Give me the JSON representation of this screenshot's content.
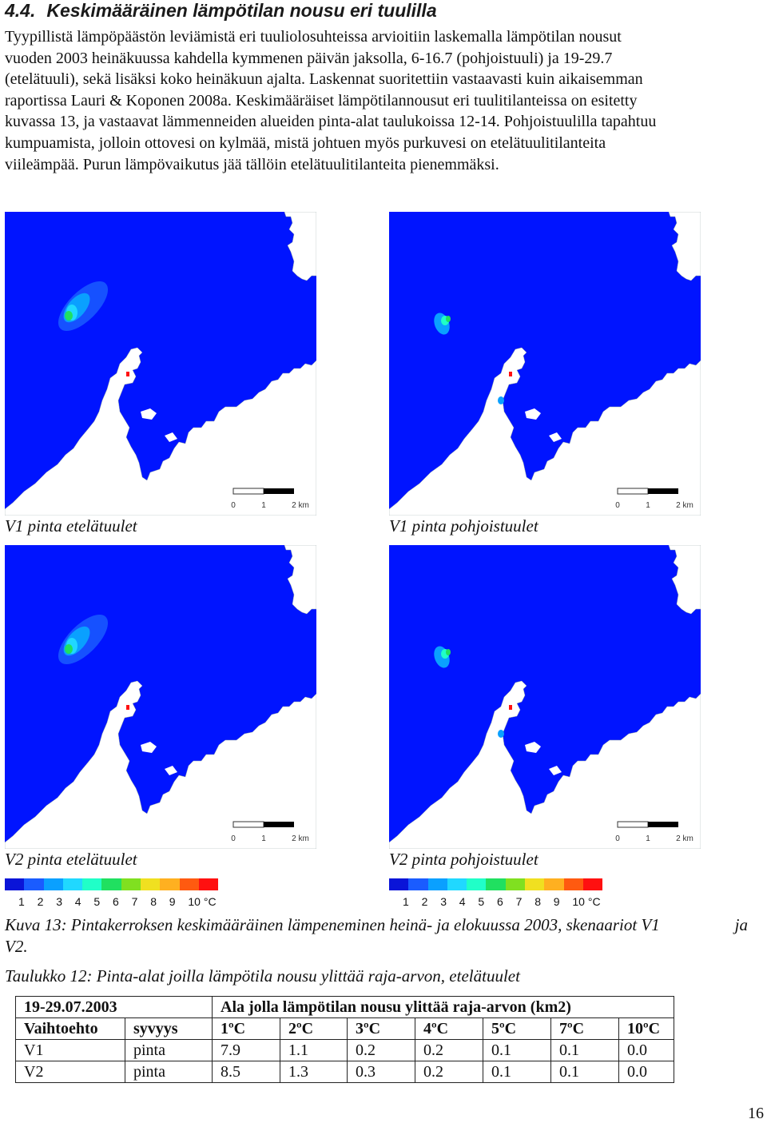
{
  "section": {
    "number": "4.4.",
    "title": "Keskimääräinen lämpötilan nousu eri tuulilla"
  },
  "intro_lines": [
    "Tyypillistä lämpöpäästön leviämistä eri tuuliolosuhteissa arvioitiin laskemalla lämpötilan nousut",
    "vuoden 2003 heinäkuussa kahdella kymmenen päivän jaksolla, 6-16.7 (pohjoistuuli) ja 19-29.7",
    "(etelätuuli), sekä lisäksi koko heinäkuun ajalta. Laskennat suoritettiin vastaavasti kuin aikaisemman",
    "raportissa Lauri & Koponen 2008a. Keskimääräiset lämpötilannousut eri tuulitilanteissa on esitetty",
    "kuvassa 13, ja vastaavat lämmenneiden alueiden pinta-alat taulukoissa 12-14. Pohjoistuulilla tapahtuu",
    "kumpuamista, jolloin ottovesi on kylmää, mistä johtuen myös purkuvesi on etelätuulitilanteita",
    "viileämpää. Purun lämpövaikutus jää tällöin etelätuulitilanteita pienemmäksi."
  ],
  "maps": [
    {
      "caption": "V1 pinta etelätuulet",
      "plume": "large"
    },
    {
      "caption": "V1 pinta pohjoistuulet",
      "plume": "small"
    },
    {
      "caption": "V2 pinta etelätuulet",
      "plume": "large"
    },
    {
      "caption": "V2 pinta pohjoistuulet",
      "plume": "small"
    }
  ],
  "scalebar": {
    "labels": [
      "0",
      "1",
      "2 km"
    ]
  },
  "colors": {
    "sea": "#0014ff",
    "land": "#ffffff"
  },
  "legend": {
    "colors": [
      "#0a14d8",
      "#1a5cff",
      "#0aa0ff",
      "#20d8ff",
      "#20ffc8",
      "#20e060",
      "#80e020",
      "#f0e020",
      "#ffb020",
      "#ff5a10",
      "#ff1010"
    ],
    "labels": [
      "1",
      "2",
      "3",
      "4",
      "5",
      "6",
      "7",
      "8",
      "9",
      "10 °C"
    ]
  },
  "figure_caption_lines": [
    [
      "Kuva 13: Pintakerroksen keskimääräinen lämpeneminen heinä- ja elokuussa 2003, skenaariot V1",
      "ja"
    ],
    [
      "V2."
    ]
  ],
  "table_title": "Taulukko 12: Pinta-alat joilla lämpötila nousu ylittää raja-arvon, etelätuulet",
  "table": {
    "period": "19-29.07.2003",
    "group_header": "Ala jolla lämpötilan nousu ylittää raja-arvon (km2)",
    "col_alt": "Vaihtoehto",
    "col_depth": "syvyys",
    "thresholds": [
      "1ºC",
      "2ºC",
      "3ºC",
      "4ºC",
      "5ºC",
      "7ºC",
      "10ºC"
    ],
    "rows": [
      {
        "alt": "V1",
        "depth": "pinta",
        "values": [
          "7.9",
          "1.1",
          "0.2",
          "0.2",
          "0.1",
          "0.1",
          "0.0"
        ]
      },
      {
        "alt": "V2",
        "depth": "pinta",
        "values": [
          "8.5",
          "1.3",
          "0.3",
          "0.2",
          "0.1",
          "0.1",
          "0.0"
        ]
      }
    ]
  },
  "page_number": "16"
}
